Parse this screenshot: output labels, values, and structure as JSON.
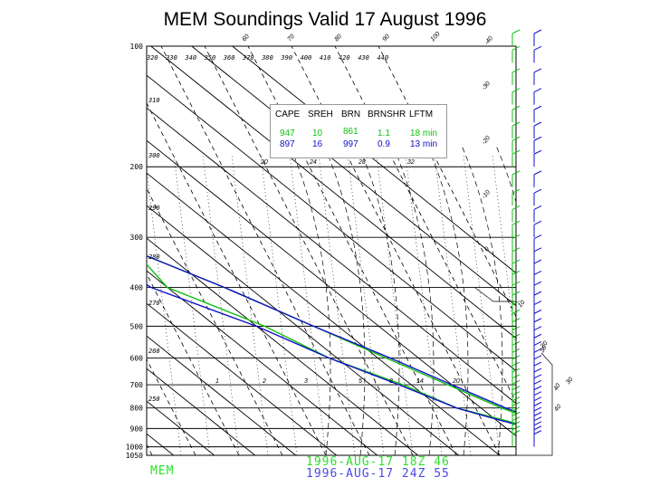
{
  "chart_data": {
    "type": "line",
    "title": "MEM Soundings Valid 17 August 1996",
    "station": "MEM",
    "pressure_levels": [
      100,
      200,
      300,
      400,
      500,
      600,
      700,
      800,
      900,
      1000,
      1050
    ],
    "isotherm_labels": [
      -40,
      -30,
      -20,
      -10,
      0,
      10,
      20,
      30,
      40
    ],
    "temperature_labels_top": [
      60,
      70,
      80,
      90,
      100
    ],
    "theta_labels_top": [
      320,
      330,
      340,
      350,
      360,
      370,
      380,
      390,
      400,
      410,
      420,
      430,
      440
    ],
    "theta_labels_left": [
      310,
      300,
      290,
      280,
      270,
      260,
      250
    ],
    "mixing_ratio_labels_upper": [
      20,
      24,
      28,
      32
    ],
    "mixing_ratio_labels_lower": [
      1,
      2,
      3,
      5,
      8,
      14,
      20
    ],
    "indices": {
      "headers": [
        "CAPE",
        "SREH",
        "BRN",
        "BRNSHR",
        "LFTM"
      ],
      "rows": [
        {
          "values": [
            "947",
            "10",
            "861",
            "1.1",
            "18 min"
          ],
          "color": "#10c010"
        },
        {
          "values": [
            "897",
            "16",
            "997",
            "0.9",
            "13 min"
          ],
          "color": "#1010c8"
        }
      ]
    },
    "series": [
      {
        "name": "1996-AUG-17 18Z 46",
        "color": "#10c010",
        "temperature": [
          [
            1000,
            31
          ],
          [
            950,
            27
          ],
          [
            900,
            23
          ],
          [
            850,
            19
          ],
          [
            800,
            15
          ],
          [
            700,
            9
          ],
          [
            600,
            2
          ],
          [
            500,
            -6
          ],
          [
            400,
            -16
          ],
          [
            300,
            -31
          ],
          [
            250,
            -41
          ],
          [
            200,
            -52
          ],
          [
            150,
            -58
          ],
          [
            100,
            -66
          ]
        ],
        "dewpoint": [
          [
            1000,
            21
          ],
          [
            950,
            18
          ],
          [
            900,
            17
          ],
          [
            850,
            11
          ],
          [
            800,
            4
          ],
          [
            700,
            -2
          ],
          [
            600,
            -12
          ],
          [
            500,
            -18
          ],
          [
            400,
            -30
          ],
          [
            350,
            -28
          ],
          [
            300,
            -42
          ],
          [
            250,
            -55
          ],
          [
            220,
            -59
          ]
        ]
      },
      {
        "name": "1996-AUG-17 24Z 55",
        "color": "#1010c8",
        "temperature": [
          [
            1000,
            35
          ],
          [
            950,
            29
          ],
          [
            900,
            25
          ],
          [
            850,
            20
          ],
          [
            800,
            16
          ],
          [
            700,
            10
          ],
          [
            600,
            3
          ],
          [
            500,
            -6
          ],
          [
            400,
            -16
          ],
          [
            300,
            -31
          ],
          [
            250,
            -42
          ],
          [
            200,
            -52
          ],
          [
            150,
            -60
          ],
          [
            100,
            -66
          ]
        ],
        "dewpoint": [
          [
            1000,
            20
          ],
          [
            950,
            17
          ],
          [
            900,
            16
          ],
          [
            850,
            10
          ],
          [
            800,
            4
          ],
          [
            700,
            -3
          ],
          [
            600,
            -12
          ],
          [
            500,
            -20
          ],
          [
            400,
            -34
          ],
          [
            350,
            -36
          ],
          [
            300,
            -46
          ],
          [
            250,
            -56
          ],
          [
            220,
            -60
          ]
        ]
      }
    ],
    "winds": [
      {
        "color": "#10c010",
        "barbs": [
          [
            1000,
            10
          ],
          [
            975,
            10
          ],
          [
            950,
            10
          ],
          [
            925,
            10
          ],
          [
            900,
            10
          ],
          [
            875,
            10
          ],
          [
            850,
            10
          ],
          [
            825,
            10
          ],
          [
            800,
            10
          ],
          [
            775,
            10
          ],
          [
            750,
            10
          ],
          [
            725,
            10
          ],
          [
            700,
            10
          ],
          [
            675,
            10
          ],
          [
            650,
            10
          ],
          [
            625,
            10
          ],
          [
            600,
            10
          ],
          [
            575,
            10
          ],
          [
            550,
            10
          ],
          [
            525,
            10
          ],
          [
            500,
            10
          ],
          [
            475,
            10
          ],
          [
            450,
            10
          ],
          [
            425,
            10
          ],
          [
            400,
            10
          ],
          [
            375,
            10
          ],
          [
            350,
            10
          ],
          [
            325,
            10
          ],
          [
            300,
            10
          ],
          [
            275,
            10
          ],
          [
            250,
            10
          ],
          [
            225,
            10
          ],
          [
            200,
            10
          ],
          [
            185,
            10
          ],
          [
            170,
            10
          ],
          [
            155,
            10
          ],
          [
            140,
            10
          ],
          [
            125,
            10
          ],
          [
            110,
            10
          ],
          [
            100,
            10
          ]
        ]
      },
      {
        "color": "#1010c8",
        "barbs": [
          [
            1000,
            10
          ],
          [
            975,
            10
          ],
          [
            950,
            10
          ],
          [
            925,
            10
          ],
          [
            900,
            10
          ],
          [
            875,
            10
          ],
          [
            850,
            10
          ],
          [
            825,
            10
          ],
          [
            800,
            10
          ],
          [
            775,
            10
          ],
          [
            750,
            10
          ],
          [
            725,
            10
          ],
          [
            700,
            10
          ],
          [
            675,
            10
          ],
          [
            650,
            10
          ],
          [
            625,
            10
          ],
          [
            600,
            10
          ],
          [
            575,
            10
          ],
          [
            550,
            10
          ],
          [
            525,
            10
          ],
          [
            500,
            10
          ],
          [
            475,
            10
          ],
          [
            450,
            10
          ],
          [
            425,
            10
          ],
          [
            400,
            10
          ],
          [
            375,
            10
          ],
          [
            350,
            10
          ],
          [
            325,
            10
          ],
          [
            300,
            10
          ],
          [
            275,
            10
          ],
          [
            250,
            10
          ],
          [
            225,
            10
          ],
          [
            200,
            10
          ],
          [
            185,
            10
          ],
          [
            170,
            10
          ],
          [
            155,
            10
          ],
          [
            140,
            10
          ],
          [
            125,
            10
          ],
          [
            110,
            10
          ],
          [
            100,
            10
          ]
        ]
      }
    ],
    "hodograph_labels": [
      30,
      40
    ]
  },
  "legend": {
    "station_label": "MEM",
    "series_labels": [
      "1996-AUG-17 18Z 46",
      "1996-AUG-17 24Z 55"
    ]
  }
}
